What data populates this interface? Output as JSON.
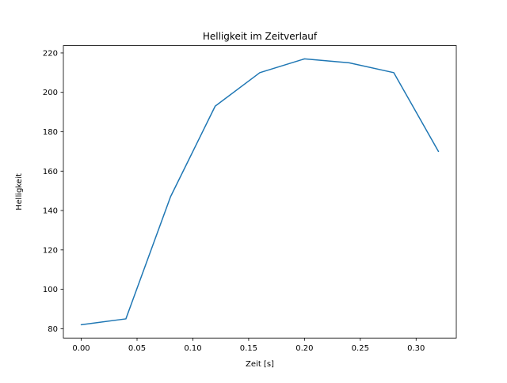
{
  "chart_data": {
    "type": "line",
    "title": "Helligkeit im Zeitverlauf",
    "xlabel": "Zeit [s]",
    "ylabel": "Helligkeit",
    "x": [
      0.0,
      0.04,
      0.08,
      0.12,
      0.16,
      0.2,
      0.24,
      0.28,
      0.32
    ],
    "y": [
      82,
      85,
      147,
      193,
      210,
      217,
      215,
      210,
      170
    ],
    "series_name": "Helligkeit",
    "xlim": [
      -0.016,
      0.336
    ],
    "ylim": [
      75.25,
      223.75
    ],
    "xtick_values": [
      0.0,
      0.05,
      0.1,
      0.15,
      0.2,
      0.25,
      0.3
    ],
    "xtick_labels": [
      "0.00",
      "0.05",
      "0.10",
      "0.15",
      "0.20",
      "0.25",
      "0.30"
    ],
    "ytick_values": [
      80,
      100,
      120,
      140,
      160,
      180,
      200,
      220
    ],
    "ytick_labels": [
      "80",
      "100",
      "120",
      "140",
      "160",
      "180",
      "200",
      "220"
    ],
    "grid": false,
    "legend": "none",
    "line_color": "#1f77b4",
    "spine_color": "#000000",
    "background_color": "#ffffff"
  }
}
